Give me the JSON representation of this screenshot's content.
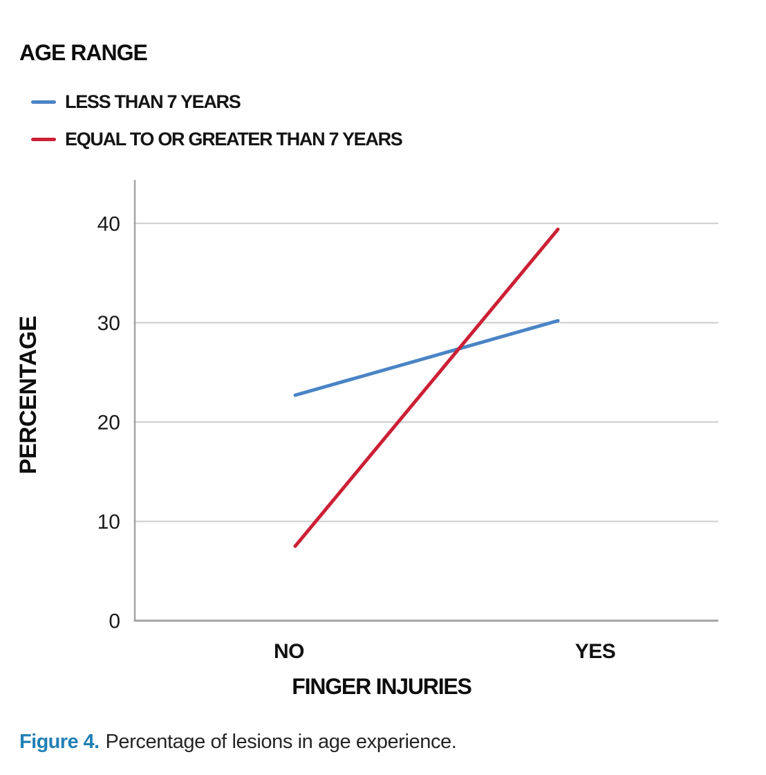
{
  "page": {
    "background": "#ffffff"
  },
  "legend": {
    "title": "AGE RANGE",
    "items": [
      {
        "label": "LESS THAN 7 YEARS",
        "color": "#4a84c5"
      },
      {
        "label": "EQUAL TO OR GREATER THAN 7 YEARS",
        "color": "#cb2035"
      }
    ]
  },
  "chart_data": {
    "type": "line",
    "categories": [
      "NO",
      "YES"
    ],
    "series": [
      {
        "name": "LESS THAN 7 YEARS",
        "color": "#4a84c5",
        "values": [
          22.7,
          30.2
        ]
      },
      {
        "name": "EQUAL TO OR GREATER THAN 7 YEARS",
        "color": "#cb2035",
        "values": [
          7.5,
          39.4
        ]
      }
    ],
    "title": "AGE RANGE",
    "xlabel": "FINGER INJURIES",
    "ylabel": "PERCENTAGE",
    "yticks": [
      0,
      10,
      20,
      30,
      40
    ],
    "ylim": [
      0,
      44.4
    ],
    "grid": "horizontal-only",
    "legend_position": "top-left",
    "tick_color": "#1a1a1a"
  },
  "caption": {
    "label": "Figure 4.",
    "text": "Percentage of lesions in age experience.",
    "label_color": "#2280b4"
  }
}
